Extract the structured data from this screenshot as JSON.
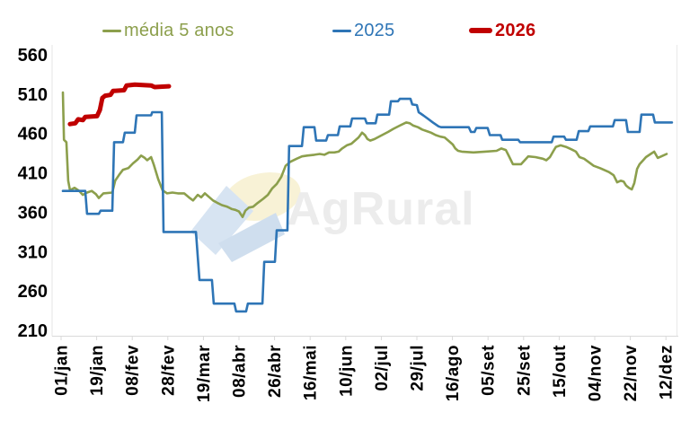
{
  "watermark": {
    "text": "AgRural"
  },
  "chart_data": {
    "type": "line",
    "title": "",
    "xlabel": "",
    "ylabel": "",
    "ylim": [
      210,
      560
    ],
    "y_ticks": [
      560,
      510,
      460,
      410,
      360,
      310,
      260,
      210
    ],
    "x_tick_labels": [
      "01/jan",
      "19/jan",
      "08/fev",
      "28/fev",
      "19/mar",
      "08/abr",
      "26/abr",
      "16/mai",
      "10/jun",
      "02/jul",
      "29/jul",
      "16/ago",
      "05/set",
      "25/set",
      "15/out",
      "04/nov",
      "22/nov",
      "12/dez"
    ],
    "x_note": "x coordinate of each point is in tick-interval units: 0 = 01/jan tick, 1 = 19/jan tick, ... 17 = 12/dez tick",
    "grid": false,
    "legend_position": "top",
    "series": [
      {
        "name": "média 5 anos",
        "color": "#8C9F4C",
        "width": 2.6,
        "points": [
          [
            0.05,
            512
          ],
          [
            0.08,
            452
          ],
          [
            0.15,
            449
          ],
          [
            0.2,
            400
          ],
          [
            0.25,
            388
          ],
          [
            0.38,
            391
          ],
          [
            0.51,
            387
          ],
          [
            0.61,
            382
          ],
          [
            0.73,
            385
          ],
          [
            0.86,
            387
          ],
          [
            0.98,
            383
          ],
          [
            1.06,
            378
          ],
          [
            1.19,
            384
          ],
          [
            1.44,
            385
          ],
          [
            1.52,
            400
          ],
          [
            1.64,
            408
          ],
          [
            1.74,
            414
          ],
          [
            1.89,
            416
          ],
          [
            2.02,
            422
          ],
          [
            2.15,
            427
          ],
          [
            2.25,
            432
          ],
          [
            2.35,
            429
          ],
          [
            2.42,
            426
          ],
          [
            2.53,
            430
          ],
          [
            2.6,
            421
          ],
          [
            2.73,
            402
          ],
          [
            2.85,
            388
          ],
          [
            2.98,
            384
          ],
          [
            3.13,
            385
          ],
          [
            3.28,
            384
          ],
          [
            3.46,
            384
          ],
          [
            3.59,
            379
          ],
          [
            3.71,
            375
          ],
          [
            3.84,
            382
          ],
          [
            3.94,
            379
          ],
          [
            4.04,
            384
          ],
          [
            4.17,
            379
          ],
          [
            4.27,
            375
          ],
          [
            4.39,
            372
          ],
          [
            4.52,
            369
          ],
          [
            4.67,
            367
          ],
          [
            4.8,
            364
          ],
          [
            4.9,
            363
          ],
          [
            5.0,
            361
          ],
          [
            5.1,
            354
          ],
          [
            5.18,
            362
          ],
          [
            5.28,
            366
          ],
          [
            5.4,
            367
          ],
          [
            5.53,
            372
          ],
          [
            5.68,
            377
          ],
          [
            5.81,
            382
          ],
          [
            5.93,
            390
          ],
          [
            6.06,
            396
          ],
          [
            6.19,
            405
          ],
          [
            6.31,
            419
          ],
          [
            6.44,
            424
          ],
          [
            6.62,
            428
          ],
          [
            6.77,
            431
          ],
          [
            6.92,
            432
          ],
          [
            7.12,
            433
          ],
          [
            7.27,
            434
          ],
          [
            7.4,
            433
          ],
          [
            7.53,
            436
          ],
          [
            7.68,
            436
          ],
          [
            7.8,
            437
          ],
          [
            7.9,
            441
          ],
          [
            8.03,
            445
          ],
          [
            8.16,
            447
          ],
          [
            8.26,
            451
          ],
          [
            8.36,
            455
          ],
          [
            8.46,
            461
          ],
          [
            8.54,
            458
          ],
          [
            8.61,
            453
          ],
          [
            8.69,
            451
          ],
          [
            8.81,
            453
          ],
          [
            9.02,
            458
          ],
          [
            9.19,
            462
          ],
          [
            9.34,
            466
          ],
          [
            9.52,
            470
          ],
          [
            9.7,
            474
          ],
          [
            9.8,
            473
          ],
          [
            9.9,
            470
          ],
          [
            10.03,
            468
          ],
          [
            10.15,
            465
          ],
          [
            10.28,
            463
          ],
          [
            10.4,
            461
          ],
          [
            10.53,
            458
          ],
          [
            10.66,
            456
          ],
          [
            10.78,
            455
          ],
          [
            10.91,
            450
          ],
          [
            11.01,
            446
          ],
          [
            11.08,
            441
          ],
          [
            11.16,
            438
          ],
          [
            11.26,
            437
          ],
          [
            11.59,
            436
          ],
          [
            11.92,
            437
          ],
          [
            12.24,
            438
          ],
          [
            12.37,
            441
          ],
          [
            12.5,
            439
          ],
          [
            12.6,
            430
          ],
          [
            12.7,
            421
          ],
          [
            12.93,
            421
          ],
          [
            13.03,
            426
          ],
          [
            13.13,
            431
          ],
          [
            13.33,
            430
          ],
          [
            13.54,
            428
          ],
          [
            13.64,
            426
          ],
          [
            13.74,
            430
          ],
          [
            13.84,
            438
          ],
          [
            13.91,
            443
          ],
          [
            14.04,
            445
          ],
          [
            14.19,
            443
          ],
          [
            14.34,
            440
          ],
          [
            14.47,
            437
          ],
          [
            14.57,
            430
          ],
          [
            14.7,
            428
          ],
          [
            14.82,
            424
          ],
          [
            14.97,
            419
          ],
          [
            15.15,
            416
          ],
          [
            15.25,
            414
          ],
          [
            15.4,
            411
          ],
          [
            15.53,
            407
          ],
          [
            15.63,
            398
          ],
          [
            15.73,
            400
          ],
          [
            15.81,
            399
          ],
          [
            15.88,
            394
          ],
          [
            15.96,
            391
          ],
          [
            16.04,
            389
          ],
          [
            16.11,
            397
          ],
          [
            16.19,
            415
          ],
          [
            16.26,
            421
          ],
          [
            16.34,
            425
          ],
          [
            16.44,
            430
          ],
          [
            16.57,
            434
          ],
          [
            16.67,
            437
          ],
          [
            16.77,
            429
          ],
          [
            16.87,
            431
          ],
          [
            17.02,
            434
          ]
        ]
      },
      {
        "name": "2025",
        "color": "#2E75B6",
        "width": 2.6,
        "points": [
          [
            0.05,
            387
          ],
          [
            0.68,
            387
          ],
          [
            0.73,
            358
          ],
          [
            1.06,
            358
          ],
          [
            1.11,
            362
          ],
          [
            1.44,
            362
          ],
          [
            1.49,
            449
          ],
          [
            1.74,
            449
          ],
          [
            1.79,
            461
          ],
          [
            2.07,
            461
          ],
          [
            2.12,
            483
          ],
          [
            2.53,
            483
          ],
          [
            2.56,
            487
          ],
          [
            2.83,
            487
          ],
          [
            2.88,
            335
          ],
          [
            3.79,
            335
          ],
          [
            3.89,
            274
          ],
          [
            4.24,
            274
          ],
          [
            4.29,
            244
          ],
          [
            4.87,
            244
          ],
          [
            4.92,
            234
          ],
          [
            5.2,
            234
          ],
          [
            5.25,
            244
          ],
          [
            5.66,
            244
          ],
          [
            5.71,
            297
          ],
          [
            6.01,
            297
          ],
          [
            6.06,
            337
          ],
          [
            6.36,
            337
          ],
          [
            6.41,
            444
          ],
          [
            6.77,
            444
          ],
          [
            6.82,
            468
          ],
          [
            7.12,
            468
          ],
          [
            7.17,
            451
          ],
          [
            7.45,
            451
          ],
          [
            7.5,
            458
          ],
          [
            7.78,
            458
          ],
          [
            7.83,
            469
          ],
          [
            8.13,
            469
          ],
          [
            8.18,
            479
          ],
          [
            8.54,
            479
          ],
          [
            8.59,
            473
          ],
          [
            8.84,
            473
          ],
          [
            8.89,
            484
          ],
          [
            9.22,
            484
          ],
          [
            9.27,
            501
          ],
          [
            9.47,
            501
          ],
          [
            9.52,
            504
          ],
          [
            9.82,
            504
          ],
          [
            9.87,
            497
          ],
          [
            10.0,
            496
          ],
          [
            10.05,
            487
          ],
          [
            10.18,
            483
          ],
          [
            10.3,
            479
          ],
          [
            10.45,
            474
          ],
          [
            10.61,
            469
          ],
          [
            10.68,
            468
          ],
          [
            11.46,
            468
          ],
          [
            11.52,
            462
          ],
          [
            11.62,
            462
          ],
          [
            11.67,
            467
          ],
          [
            11.99,
            467
          ],
          [
            12.05,
            458
          ],
          [
            12.35,
            458
          ],
          [
            12.4,
            452
          ],
          [
            12.85,
            452
          ],
          [
            12.9,
            449
          ],
          [
            13.79,
            449
          ],
          [
            13.84,
            456
          ],
          [
            14.14,
            456
          ],
          [
            14.19,
            452
          ],
          [
            14.49,
            452
          ],
          [
            14.55,
            463
          ],
          [
            14.82,
            463
          ],
          [
            14.87,
            469
          ],
          [
            15.51,
            469
          ],
          [
            15.56,
            477
          ],
          [
            15.88,
            477
          ],
          [
            15.93,
            462
          ],
          [
            16.26,
            462
          ],
          [
            16.31,
            484
          ],
          [
            16.64,
            484
          ],
          [
            16.69,
            474
          ],
          [
            17.17,
            474
          ]
        ]
      },
      {
        "name": "2026",
        "color": "#C00000",
        "width": 5,
        "points": [
          [
            0.25,
            472
          ],
          [
            0.4,
            473
          ],
          [
            0.48,
            478
          ],
          [
            0.61,
            477
          ],
          [
            0.68,
            481
          ],
          [
            1.01,
            482
          ],
          [
            1.09,
            490
          ],
          [
            1.16,
            505
          ],
          [
            1.24,
            508
          ],
          [
            1.39,
            509
          ],
          [
            1.46,
            514
          ],
          [
            1.77,
            515
          ],
          [
            1.84,
            521
          ],
          [
            2.07,
            522
          ],
          [
            2.53,
            521
          ],
          [
            2.63,
            519
          ],
          [
            3.03,
            520
          ]
        ]
      }
    ]
  }
}
